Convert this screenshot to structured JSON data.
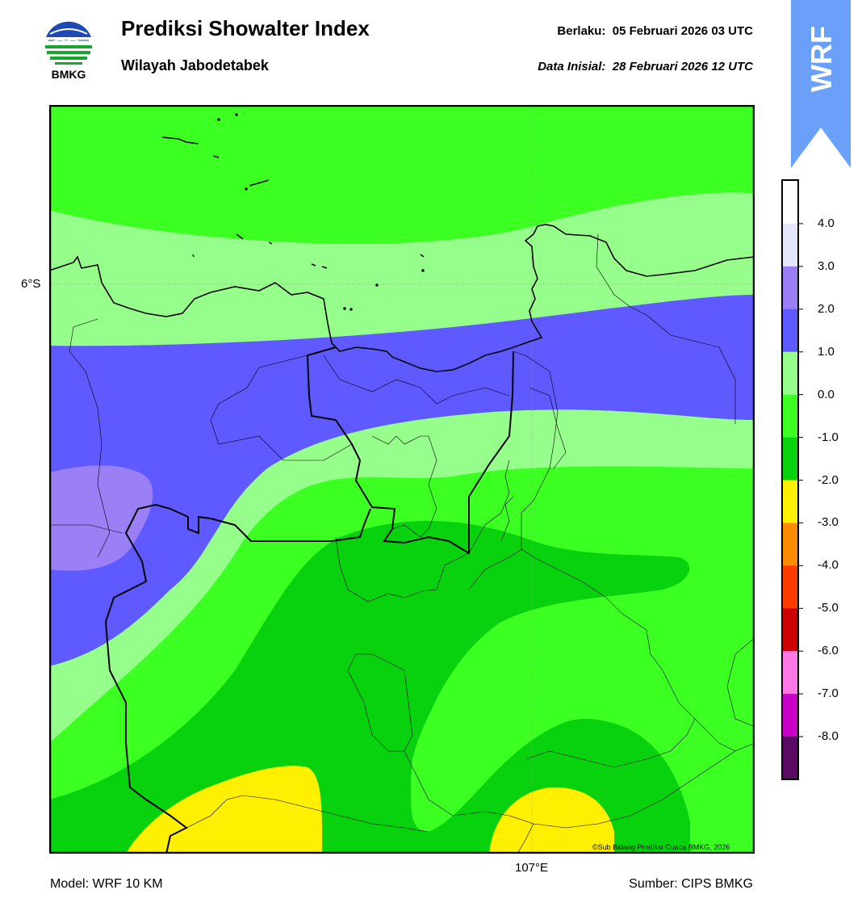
{
  "header": {
    "title": "Prediksi Showalter Index",
    "subtitle": "Wilayah Jabodetabek",
    "valid_label": "Berlaku:  05 Februari 2026 03 UTC",
    "init_label": "Data Inisial:  28 Februari 2026 12 UTC"
  },
  "logo": {
    "text": "BMKG"
  },
  "wrf_tab": {
    "text": "WRF",
    "color": "#6aa0fa"
  },
  "map": {
    "lat_label": "6°S",
    "lon_label": "107°E",
    "copyright": "©Sub Bidang Prediksi Cuaca BMKG, 2026"
  },
  "footer": {
    "model": "Model: WRF 10 KM",
    "source": "Sumber: CIPS BMKG"
  },
  "colorbar": {
    "labels": [
      "4.0",
      "3.0",
      "2.0",
      "1.0",
      "0.0",
      "-1.0",
      "-2.0",
      "-3.0",
      "-4.0",
      "-5.0",
      "-6.0",
      "-7.0",
      "-8.0"
    ],
    "colors": [
      "#ffffff",
      "#e6e6fa",
      "#9b7ff5",
      "#5f5aff",
      "#96ff8c",
      "#3cff22",
      "#08d10e",
      "#fff000",
      "#ff8c00",
      "#ff3c00",
      "#cd0000",
      "#ff78e6",
      "#c800c8",
      "#5a0a64"
    ]
  },
  "palette": {
    "light_green": "#96ff8c",
    "green": "#3cff22",
    "dark_green": "#08d10e",
    "blue": "#5f5aff",
    "purple": "#9b7ff5",
    "yellow": "#fff000"
  }
}
